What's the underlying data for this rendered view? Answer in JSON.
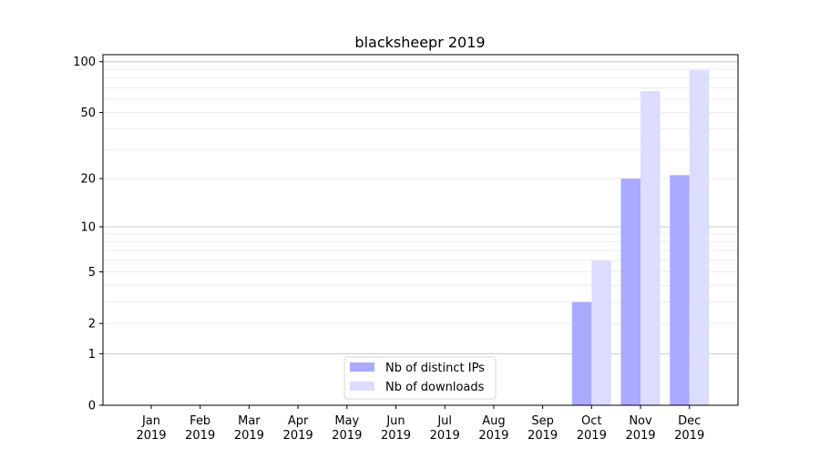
{
  "chart_data": {
    "type": "bar",
    "title": "blacksheepr 2019",
    "xlabel": "",
    "ylabel": "",
    "yscale": "log(1+y)",
    "ylim": [
      0,
      110
    ],
    "yticks": [
      0,
      1,
      2,
      5,
      10,
      20,
      50,
      100
    ],
    "grid": true,
    "legend_position": "bottom-center",
    "categories": [
      "Jan\n2019",
      "Feb\n2019",
      "Mar\n2019",
      "Apr\n2019",
      "May\n2019",
      "Jun\n2019",
      "Jul\n2019",
      "Aug\n2019",
      "Sep\n2019",
      "Oct\n2019",
      "Nov\n2019",
      "Dec\n2019"
    ],
    "series": [
      {
        "name": "Nb of distinct IPs",
        "color": "#aaaaff",
        "values": [
          0,
          0,
          0,
          0,
          0,
          0,
          0,
          0,
          0,
          3,
          20,
          21
        ]
      },
      {
        "name": "Nb of downloads",
        "color": "#dcdcff",
        "values": [
          0,
          0,
          0,
          0,
          0,
          0,
          0,
          0,
          0,
          6,
          67,
          89
        ]
      }
    ]
  }
}
